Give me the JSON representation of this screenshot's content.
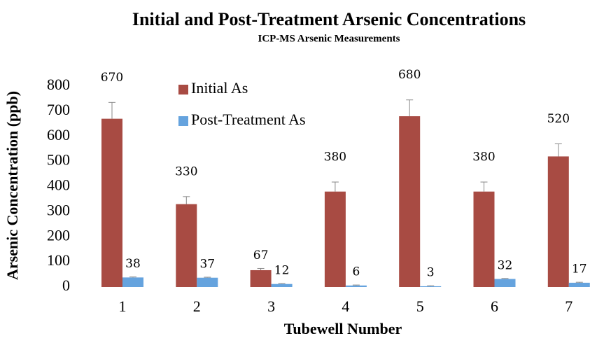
{
  "chart_data": {
    "type": "bar",
    "title": "Initial and Post-Treatment Arsenic Concentrations",
    "subtitle": "ICP-MS Arsenic Measurements",
    "x_label": "Tubewell Number",
    "y_label": "Arsenic Concentration (ppb)",
    "categories": [
      "1",
      "2",
      "3",
      "4",
      "5",
      "6",
      "7"
    ],
    "series": [
      {
        "name": "Initial As",
        "color": "#a84b43",
        "values": [
          670,
          330,
          67,
          380,
          680,
          380,
          520
        ],
        "errors": [
          65,
          30,
          7,
          38,
          65,
          38,
          50
        ]
      },
      {
        "name": "Post-Treatment As",
        "color": "#65a3de",
        "values": [
          38,
          37,
          12,
          6,
          3,
          32,
          17
        ],
        "errors": [
          2,
          2,
          2,
          2,
          2,
          2,
          2
        ]
      }
    ],
    "ylim": [
      0,
      800
    ],
    "yticks": [
      0,
      100,
      200,
      300,
      400,
      500,
      600,
      700,
      800
    ],
    "grid": false,
    "legend": "upper left"
  }
}
